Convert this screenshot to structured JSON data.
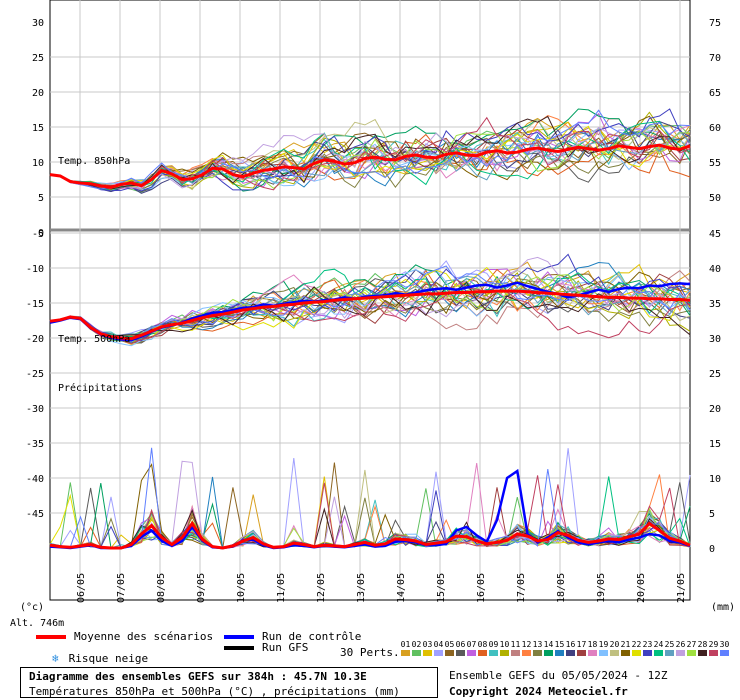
{
  "chart_data": {
    "type": "line",
    "title": "Diagramme des ensembles GEFS sur 384h : 45.7N 10.3E",
    "subtitle": "Températures 850hPa et 500hPa (°C) , précipitations (mm)",
    "x_ticks": [
      "06/05",
      "07/05",
      "08/05",
      "09/05",
      "10/05",
      "11/05",
      "12/05",
      "13/05",
      "14/05",
      "15/05",
      "16/05",
      "17/05",
      "18/05",
      "19/05",
      "20/05",
      "21/05"
    ],
    "upper_panel": {
      "left_ticks": [
        "30",
        "25",
        "20",
        "15",
        "10",
        "5",
        "0"
      ],
      "left_range": [
        0,
        30
      ],
      "right_ticks": [
        "75",
        "70",
        "65",
        "60",
        "55",
        "50"
      ],
      "label": "Temp. 850hPa",
      "mean": [
        8.2,
        8.0,
        7.2,
        7.0,
        6.9,
        6.6,
        6.4,
        6.8,
        7.0,
        6.6,
        7.5,
        8.8,
        8.3,
        7.5,
        7.6,
        8.2,
        9.1,
        9.0,
        8.2,
        7.9,
        8.4,
        8.8,
        9.0,
        9.3,
        9.2,
        9.0,
        9.8,
        10.3,
        10.1,
        9.7,
        9.9,
        10.5,
        10.7,
        10.4,
        10.3,
        10.8,
        11.0,
        10.7,
        10.6,
        11.1,
        11.3,
        11.0,
        10.9,
        11.4,
        11.6,
        11.3,
        11.4,
        11.8,
        12.0,
        11.7,
        11.5,
        11.8,
        12.1,
        11.9,
        11.7,
        11.9,
        12.3,
        12.1,
        11.9,
        12.2,
        12.4,
        12.0,
        11.8,
        12.3
      ]
    },
    "lower_panel": {
      "left_ticks": [
        "-5",
        "-10",
        "-15",
        "-20",
        "-25",
        "-30",
        "-35",
        "-40",
        "-45"
      ],
      "left_range": [
        -50,
        0
      ],
      "right_ticks": [
        "45",
        "40",
        "35",
        "30",
        "25",
        "20",
        "15",
        "10",
        "5",
        "0"
      ],
      "precip_range": [
        0,
        45
      ],
      "label_500": "Temp. 500hPa",
      "label_precip": "Précipitations",
      "mean_500": [
        -17.6,
        -17.4,
        -17.0,
        -17.2,
        -18.5,
        -19.4,
        -19.8,
        -20.0,
        -20.1,
        -19.6,
        -19.0,
        -18.4,
        -18.1,
        -17.9,
        -17.5,
        -17.1,
        -16.8,
        -16.6,
        -16.3,
        -16.0,
        -15.8,
        -15.6,
        -15.5,
        -15.3,
        -15.2,
        -15.0,
        -14.9,
        -14.8,
        -14.6,
        -14.5,
        -14.4,
        -14.3,
        -14.2,
        -14.1,
        -14.0,
        -13.9,
        -13.8,
        -13.7,
        -13.7,
        -13.6,
        -13.5,
        -13.5,
        -13.4,
        -13.4,
        -13.3,
        -13.3,
        -13.3,
        -13.4,
        -13.5,
        -13.6,
        -13.7,
        -13.8,
        -13.9,
        -14.0,
        -14.1,
        -14.2,
        -14.2,
        -14.3,
        -14.3,
        -14.4,
        -14.4,
        -14.5,
        -14.5,
        -14.6
      ],
      "control_500": [
        -17.8,
        -17.5,
        -17.1,
        -17.3,
        -18.6,
        -19.5,
        -20.0,
        -20.2,
        -20.3,
        -19.8,
        -19.1,
        -18.5,
        -18.2,
        -17.8,
        -17.2,
        -16.8,
        -16.4,
        -16.3,
        -16.0,
        -15.7,
        -15.6,
        -15.2,
        -15.4,
        -15.1,
        -14.9,
        -14.7,
        -14.8,
        -14.6,
        -14.5,
        -14.2,
        -14.4,
        -14.1,
        -14.0,
        -13.9,
        -13.6,
        -13.8,
        -13.5,
        -13.2,
        -13.0,
        -12.9,
        -13.1,
        -12.8,
        -12.5,
        -12.4,
        -12.8,
        -12.5,
        -12.1,
        -12.6,
        -13.0,
        -13.4,
        -13.7,
        -14.2,
        -13.9,
        -13.5,
        -13.1,
        -13.4,
        -13.0,
        -12.8,
        -12.9,
        -12.5,
        -12.6,
        -12.3,
        -12.2,
        -12.3
      ],
      "mean_precip": [
        0.4,
        0.2,
        0.1,
        0.3,
        0.5,
        0.1,
        0.0,
        0.0,
        0.5,
        2.0,
        3.2,
        1.5,
        0.5,
        1.5,
        3.5,
        1.2,
        0.2,
        0.0,
        0.3,
        1.0,
        1.5,
        0.6,
        0.1,
        0.2,
        0.7,
        0.5,
        0.2,
        0.4,
        0.3,
        0.2,
        0.5,
        0.8,
        0.4,
        0.6,
        1.3,
        1.2,
        1.0,
        0.5,
        0.7,
        0.9,
        1.7,
        1.6,
        1.0,
        0.6,
        0.8,
        1.1,
        2.0,
        1.7,
        1.0,
        1.2,
        2.2,
        1.8,
        1.1,
        0.8,
        1.0,
        1.3,
        1.2,
        1.6,
        2.0,
        3.5,
        2.5,
        1.4,
        1.0,
        0.4
      ],
      "control_precip": [
        0.2,
        0.1,
        0.0,
        0.2,
        0.4,
        0.0,
        0.0,
        0.0,
        0.3,
        1.6,
        2.5,
        1.0,
        0.3,
        1.0,
        3.0,
        1.0,
        0.1,
        0.0,
        0.2,
        1.1,
        1.2,
        0.4,
        0.0,
        0.1,
        0.4,
        0.3,
        0.1,
        0.3,
        0.2,
        0.1,
        0.3,
        0.5,
        0.2,
        0.3,
        0.9,
        1.0,
        0.8,
        0.4,
        0.4,
        0.6,
        2.5,
        3.0,
        1.8,
        0.9,
        4.0,
        10.0,
        11.0,
        2.0,
        0.8,
        1.5,
        2.4,
        1.5,
        0.8,
        0.5,
        0.8,
        1.0,
        0.8,
        1.2,
        1.5,
        2.0,
        1.8,
        1.0,
        0.8,
        0.3
      ]
    },
    "x_count": 64,
    "members": 30
  },
  "axis": {
    "unit_left": "(°c)",
    "unit_right": "(mm)",
    "altitude": "Alt. 746m"
  },
  "legend": {
    "mean_label": "Moyenne des scénarios",
    "mean_color": "#ff0000",
    "control_label": "Run de contrôle",
    "control_color": "#0000ff",
    "gfs_label": "Run GFS",
    "gfs_color": "#000000",
    "snow_label": "Risque neige",
    "snow_symbol": "❄",
    "perts_label": "30 Perts.",
    "member_ids": [
      "01",
      "02",
      "03",
      "04",
      "05",
      "06",
      "07",
      "08",
      "09",
      "10",
      "11",
      "12",
      "13",
      "14",
      "15",
      "16",
      "17",
      "18",
      "19",
      "20",
      "21",
      "22",
      "23",
      "24",
      "25",
      "26",
      "27",
      "28",
      "29",
      "30"
    ],
    "member_colors": [
      "#d8a020",
      "#60c060",
      "#e0c000",
      "#a0a0ff",
      "#8c6420",
      "#5a5a5a",
      "#c060e0",
      "#e06020",
      "#40c0c0",
      "#b0b000",
      "#c08080",
      "#ff8040",
      "#808040",
      "#00a060",
      "#2080c0",
      "#404080",
      "#a04040",
      "#e080c0",
      "#80c0ff",
      "#c0c080",
      "#806000",
      "#e0e000",
      "#4040c0",
      "#00c080",
      "#60a0c0",
      "#c0a0e0",
      "#a0e040",
      "#402020",
      "#c04060",
      "#6080ff"
    ]
  },
  "footer": {
    "title": "Diagramme des ensembles GEFS sur 384h : 45.7N 10.3E",
    "subtitle": "Températures 850hPa et 500hPa (°C) , précipitations (mm)",
    "ensemble": "Ensemble GEFS du 05/05/2024 - 12Z",
    "copyright": "Copyright 2024 Meteociel.fr"
  }
}
